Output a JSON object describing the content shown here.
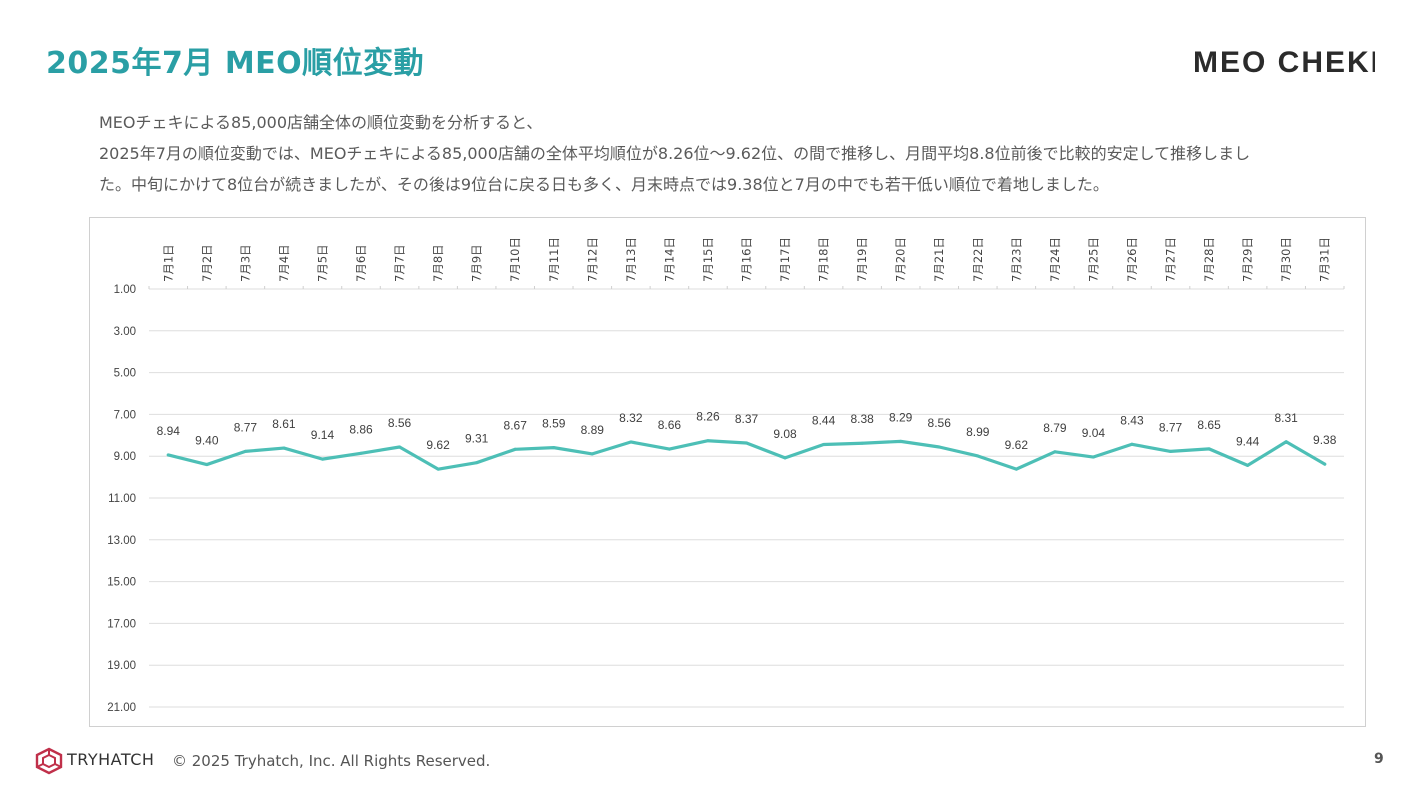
{
  "header": {
    "title": "2025年7月 MEO順位変動",
    "logo_text": "MEO CHEKI"
  },
  "description": {
    "line1": "MEOチェキによる85,000店舗全体の順位変動を分析すると、",
    "line2": "2025年7月の順位変動では、MEOチェキによる85,000店舗の全体平均順位が8.26位〜9.62位、の間で推移し、月間平均8.8位前後で比較的安定して推移しまし",
    "line3": "た。中旬にかけて8位台が続きましたが、その後は9位台に戻る日も多く、月末時点では9.38位と7月の中でも若干低い順位で着地しました。"
  },
  "chart_data": {
    "type": "line",
    "categories": [
      "7月1日",
      "7月2日",
      "7月3日",
      "7月4日",
      "7月5日",
      "7月6日",
      "7月7日",
      "7月8日",
      "7月9日",
      "7月10日",
      "7月11日",
      "7月12日",
      "7月13日",
      "7月14日",
      "7月15日",
      "7月16日",
      "7月17日",
      "7月18日",
      "7月19日",
      "7月20日",
      "7月21日",
      "7月22日",
      "7月23日",
      "7月24日",
      "7月25日",
      "7月26日",
      "7月27日",
      "7月28日",
      "7月29日",
      "7月30日",
      "7月31日"
    ],
    "values": [
      8.94,
      9.4,
      8.77,
      8.61,
      9.14,
      8.86,
      8.56,
      9.62,
      9.31,
      8.67,
      8.59,
      8.89,
      8.32,
      8.66,
      8.26,
      8.37,
      9.08,
      8.44,
      8.38,
      8.29,
      8.56,
      8.99,
      9.62,
      8.79,
      9.04,
      8.43,
      8.77,
      8.65,
      9.44,
      8.31,
      9.38
    ],
    "y_ticks": [
      "1.00",
      "3.00",
      "5.00",
      "7.00",
      "9.00",
      "11.00",
      "13.00",
      "15.00",
      "17.00",
      "19.00",
      "21.00"
    ],
    "ylim": [
      1,
      21
    ],
    "y_reversed": true,
    "grid": true,
    "x_axis_position": "top",
    "line_color": "#4dbfb6",
    "data_labels": true
  },
  "footer": {
    "brand": "TRYHATCH",
    "copyright": "© 2025 Tryhatch, Inc. All Rights Reserved.",
    "page_number": "9",
    "brand_color": "#c0304a"
  }
}
